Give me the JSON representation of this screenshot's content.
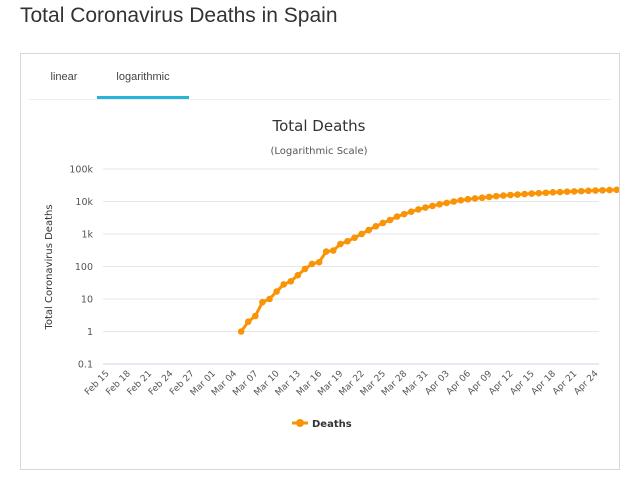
{
  "page_title": "Total Coronavirus Deaths in Spain",
  "tabs": [
    {
      "label": "linear",
      "active": false
    },
    {
      "label": "logarithmic",
      "active": true
    }
  ],
  "colors": {
    "series": "#f89406",
    "tab_active": "#27b4d8",
    "grid": "#e6e6e6"
  },
  "chart_data": {
    "type": "line",
    "title": "Total Deaths",
    "subtitle": "(Logarithmic Scale)",
    "xlabel": "",
    "ylabel": "Total Coronavirus Deaths",
    "yscale": "log",
    "ylim": [
      0.1,
      100000
    ],
    "ytick_values": [
      0.1,
      1,
      10,
      100,
      1000,
      10000,
      100000
    ],
    "ytick_labels": [
      "0.1",
      "1",
      "10",
      "100",
      "1k",
      "10k",
      "100k"
    ],
    "xtick_labels": [
      "Feb 15",
      "Feb 18",
      "Feb 21",
      "Feb 24",
      "Feb 27",
      "Mar 01",
      "Mar 04",
      "Mar 07",
      "Mar 10",
      "Mar 13",
      "Mar 16",
      "Mar 19",
      "Mar 22",
      "Mar 25",
      "Mar 28",
      "Mar 31",
      "Apr 03",
      "Apr 06",
      "Apr 09",
      "Apr 12",
      "Apr 15",
      "Apr 18",
      "Apr 21",
      "Apr 24"
    ],
    "x_start": "Feb 15",
    "x_end": "Apr 26",
    "legend": {
      "label": "Deaths",
      "position": "bottom"
    },
    "series": [
      {
        "name": "Deaths",
        "start_day_index": 19,
        "values": [
          1,
          2,
          3,
          8,
          10,
          17,
          28,
          35,
          54,
          84,
          120,
          136,
          288,
          309,
          491,
          598,
          767,
          1002,
          1326,
          1720,
          2182,
          2696,
          3434,
          4089,
          4858,
          5690,
          6528,
          7340,
          8189,
          9053,
          10003,
          10935,
          11744,
          12418,
          13055,
          13798,
          14555,
          15238,
          15843,
          16353,
          16972,
          17489,
          18056,
          18579,
          19130,
          19478,
          20043,
          20453,
          20852,
          21282,
          21717,
          22157,
          22524,
          22902,
          23190,
          23521
        ]
      }
    ]
  }
}
